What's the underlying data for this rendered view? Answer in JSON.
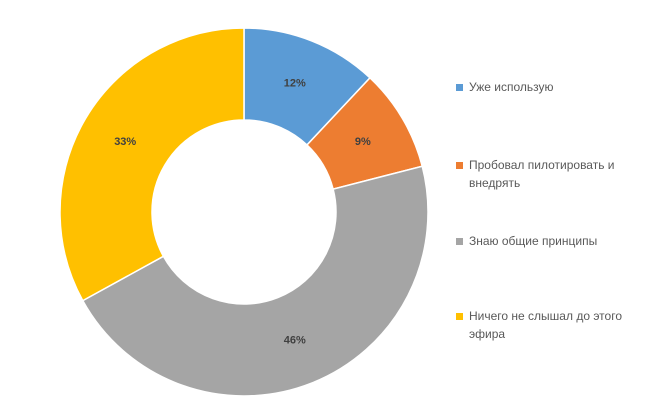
{
  "chart_data": {
    "type": "pie",
    "subtype": "donut",
    "title": "",
    "legend_position": "right",
    "categories": [
      "Уже использую",
      "Пробовал пилотировать и внедрять",
      "Знаю общие принципы",
      "Ничего не слышал до этого эфира"
    ],
    "values": [
      12,
      9,
      46,
      33
    ],
    "labels": [
      "12%",
      "9%",
      "46%",
      "33%"
    ],
    "colors": [
      "#5B9BD5",
      "#ED7D31",
      "#A5A5A5",
      "#FFC000"
    ]
  }
}
